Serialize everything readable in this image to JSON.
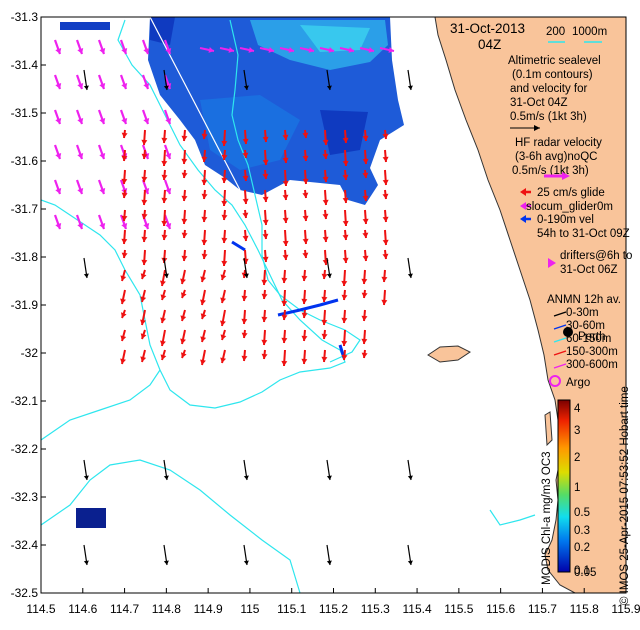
{
  "title": {
    "date": "31-Oct-2013",
    "time": "04Z"
  },
  "depth_contours": {
    "label_a": "200",
    "label_b": "1000m"
  },
  "legend": {
    "altimetry": [
      "Altimetric sealevel",
      "(0.1m contours)",
      "and velocity for",
      "31-Oct 04Z",
      "0.5m/s (1kt 3h)"
    ],
    "hf_radar": [
      "HF radar velocity",
      "(3-6h avg)noQC",
      "0.5m/s (1kt 3h)"
    ],
    "glider": [
      "25 cm/s glide",
      "slocum_glider0m",
      "0-190m vel",
      "54h to 31-Oct 09Z"
    ],
    "drifters": [
      "drifters@6h to",
      "31-Oct 06Z"
    ],
    "anmn": [
      "ANMN 12h av.",
      "0-30m",
      "30-60m",
      "60-150m",
      "150-300m",
      "300-600m"
    ],
    "argo": "Argo",
    "perth": "Perth",
    "credit": "© IMOS 25-Apr-2015 07:53:52 Hobart time",
    "colorbar_label": "MODIS Chl-a mg/m3 OC3"
  },
  "colors": {
    "land": "#f9c49a",
    "contour": "#2ee6ee",
    "hf_arrow": "#ee1111",
    "alt_arrow": "#ee22ee",
    "mooring_arrow": "#000000",
    "glider": "#0033ee",
    "argo": "#ee22ee"
  },
  "colorbar": {
    "ticks": [
      "4",
      "3",
      "2",
      "1",
      "0.5",
      "0.3",
      "0.2",
      "0.1",
      "0.05"
    ]
  },
  "axes": {
    "x_ticks": [
      "114.5",
      "114.6",
      "114.7",
      "114.8",
      "114.9",
      "115",
      "115.1",
      "115.2",
      "115.3",
      "115.4",
      "115.5",
      "115.6",
      "115.7",
      "115.8",
      "115.9"
    ],
    "y_ticks": [
      "-31.3",
      "-31.4",
      "-31.5",
      "-31.6",
      "-31.7",
      "-31.8",
      "-31.9",
      "-32",
      "-32.1",
      "-32.2",
      "-32.3",
      "-32.4",
      "-32.5"
    ],
    "lon_range": [
      114.5,
      115.9
    ],
    "lat_range": [
      -32.5,
      -31.3
    ]
  }
}
